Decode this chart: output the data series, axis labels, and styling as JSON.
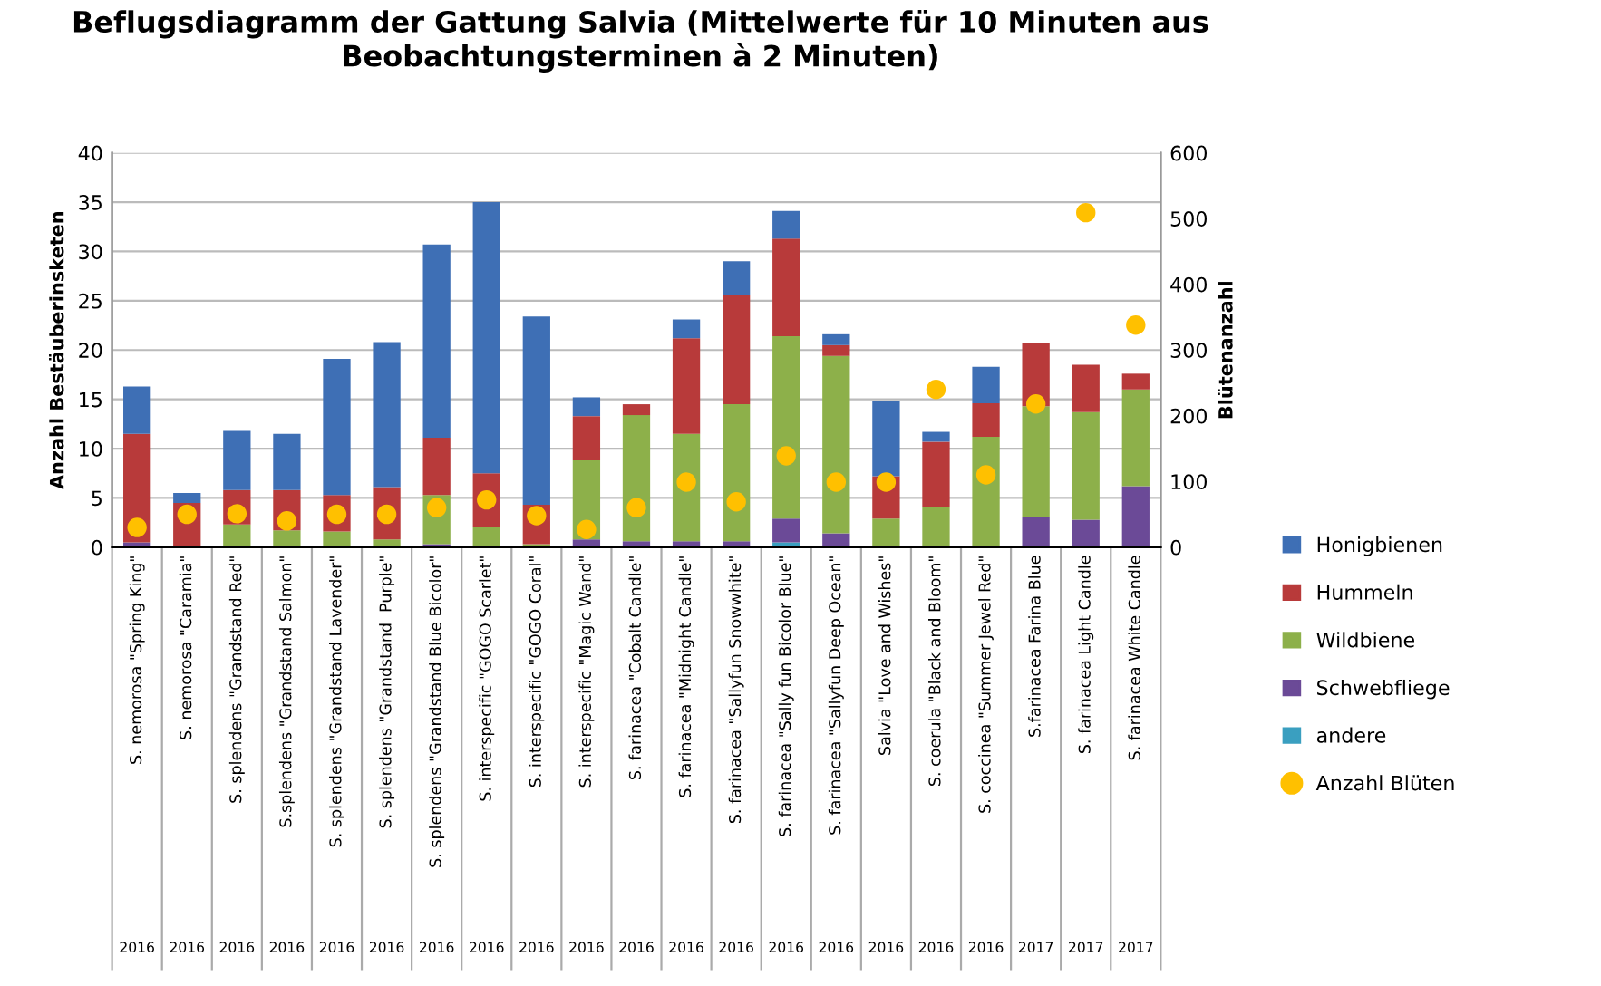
{
  "chart_data": {
    "type": "bar",
    "stacked": true,
    "title": "Beflugsdiagramm der Gattung Salvia (Mittelwerte für 10 Minuten aus Beobachtungsterminen à 2 Minuten)",
    "ylabel": "Anzahl Bestäuberinsketen",
    "y2label": "Blütenanzahl",
    "categories": [
      "S. nemorosa \"Spring King\"\n2016",
      "S. nemorosa \"Caramia\"\n2016",
      "S. splendens \"Grandstand Red\"\n2016",
      "S.splendens \"Grandstand Salmon\"\n2016",
      "S. splendens \"Grandstand Lavender\"\n2016",
      "S. splendens \"Grandstand  Purple\"\n2016",
      "S. splendens \"Grandstand Blue Bicolor\"\n2016",
      "S. interspecific \"GOGO Scarlet\"\n2016",
      "S. interspecific \"GOGO Coral\"\n2016",
      "S. interspecific \"Magic Wand\"\n2016",
      "S. farinacea \"Cobalt Candle\"\n2016",
      "S. farinacea \"Midnight Candle\"\n2016",
      "S. farinacea \"Sallyfun Snowwhite\"\n2016",
      "S. farinacea \"Sally fun Bicolor Blue\"\n2016",
      "S. farinacea \"Sallyfun Deep Ocean\"\n2016",
      "Salvia \"Love and Wishes\"\n2016",
      "S. coerula \"Black and Bloom\"\n2016",
      "S. coccinea \"Summer Jewel Red\"\n2016",
      "S.farinacea Farina Blue\n2017",
      "S. farinacea Light Candle\n2017",
      "S. farinacea White Candle\n2017"
    ],
    "series": [
      {
        "name": "andere",
        "color": "#3a9fc0",
        "values": [
          0,
          0,
          0,
          0,
          0,
          0,
          0,
          0,
          0,
          0,
          0,
          0,
          0,
          0.5,
          0,
          0,
          0,
          0,
          0,
          0,
          0
        ]
      },
      {
        "name": "Schwebfliege",
        "color": "#6b4a97",
        "values": [
          0.5,
          0,
          0,
          0,
          0,
          0,
          0.3,
          0,
          0,
          0.8,
          0.6,
          0.6,
          0.6,
          2.4,
          1.4,
          0,
          0,
          0,
          3.1,
          2.8,
          6.2
        ]
      },
      {
        "name": "Wildbiene",
        "color": "#8db04a",
        "values": [
          0,
          0,
          2.3,
          1.7,
          1.6,
          0.8,
          5,
          2,
          0.3,
          8,
          12.8,
          10.9,
          13.9,
          18.5,
          18,
          2.9,
          4.1,
          11.2,
          11.2,
          10.9,
          9.8
        ]
      },
      {
        "name": "Hummeln",
        "color": "#b83a3a",
        "values": [
          11,
          4.5,
          3.5,
          4.1,
          3.7,
          5.3,
          5.8,
          5.5,
          4,
          4.5,
          1.1,
          9.7,
          11.1,
          9.9,
          1.1,
          4.3,
          6.6,
          3.4,
          6.4,
          4.8,
          1.6
        ]
      },
      {
        "name": "Honigbienen",
        "color": "#3e6fb5",
        "values": [
          4.8,
          1,
          6,
          5.7,
          13.8,
          14.7,
          19.6,
          27.5,
          19.1,
          1.9,
          0,
          1.9,
          3.4,
          2.8,
          1.1,
          7.6,
          1,
          3.7,
          0,
          0,
          0
        ]
      },
      {
        "name": "Anzahl Blüten",
        "type": "scatter",
        "axis": "y2",
        "marker": "circle",
        "color": "#ffc000",
        "values": [
          30,
          50,
          51,
          40,
          50,
          50,
          60,
          72,
          48,
          27,
          60,
          99,
          69,
          139,
          99,
          99,
          240,
          110,
          218,
          509,
          338
        ]
      }
    ],
    "ylim": [
      0,
      40
    ],
    "yticks": [
      0,
      5,
      10,
      15,
      20,
      25,
      30,
      35,
      40
    ],
    "y2lim": [
      0,
      600
    ],
    "y2ticks": [
      0,
      100,
      200,
      300,
      400,
      500,
      600
    ],
    "grid": "y",
    "legend": "right"
  }
}
